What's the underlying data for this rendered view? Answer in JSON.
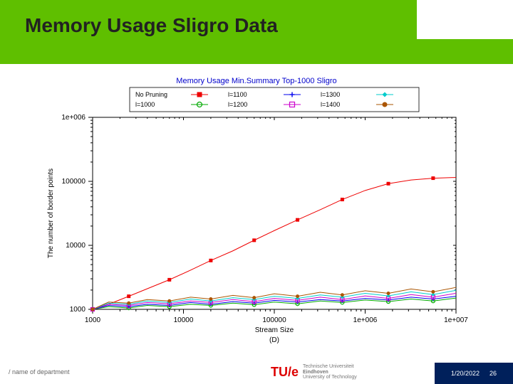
{
  "title": "Memory Usage Sligro Data",
  "footer": {
    "left": "/ name of department",
    "logo_main": "TU/e",
    "logo_sub1": "Technische Universiteit",
    "logo_sub2": "Eindhoven",
    "logo_sub3": "University of Technology",
    "date": "1/20/2022",
    "page": "26"
  },
  "chart": {
    "title": "Memory Usage Min.Summary Top-1000 Sligro",
    "title_color": "#0000cc",
    "title_fontsize": 11,
    "xlabel": "Stream Size",
    "ylabel": "The number of border points",
    "label_fontsize": 10,
    "axis_color": "#000000",
    "background": "#ffffff",
    "x_log": true,
    "y_log": true,
    "xlim": [
      1000,
      10000000
    ],
    "ylim": [
      1000,
      1000000
    ],
    "xticks": [
      1000,
      10000,
      100000,
      1000000,
      10000000
    ],
    "xticklabels": [
      "1000",
      "10000",
      "100000",
      "1e+006",
      "1e+007"
    ],
    "yticks": [
      1000,
      10000,
      100000,
      1000000
    ],
    "yticklabels": [
      "1000",
      "10000",
      "100000",
      "1e+006"
    ],
    "d_label": "(D)",
    "legend": {
      "items": [
        {
          "label": "No Pruning",
          "color": "#ee0000",
          "marker": "square-filled"
        },
        {
          "label": "l=1100",
          "color": "#0000ee",
          "marker": "cross"
        },
        {
          "label": "l=1300",
          "color": "#00cccc",
          "marker": "diamond-filled"
        },
        {
          "label": "l=1000",
          "color": "#00aa00",
          "marker": "circle-open"
        },
        {
          "label": "l=1200",
          "color": "#cc00cc",
          "marker": "square-open"
        },
        {
          "label": "l=1400",
          "color": "#aa5500",
          "marker": "circle-filled"
        }
      ]
    },
    "series": [
      {
        "name": "No Pruning",
        "color": "#ee0000",
        "marker": "square-filled",
        "x": [
          1000,
          1500,
          2500,
          4000,
          7000,
          12000,
          20000,
          35000,
          60000,
          100000,
          180000,
          320000,
          560000,
          1000000,
          1800000,
          3200000,
          5600000,
          10000000
        ],
        "y": [
          1000,
          1200,
          1600,
          2100,
          2900,
          4100,
          5800,
          8200,
          12000,
          17000,
          25000,
          36000,
          52000,
          72000,
          92000,
          105000,
          112000,
          115000
        ]
      },
      {
        "name": "l=1000",
        "color": "#00aa00",
        "marker": "circle-open",
        "x": [
          1000,
          1500,
          2500,
          4000,
          7000,
          12000,
          20000,
          35000,
          60000,
          100000,
          180000,
          320000,
          560000,
          1000000,
          1800000,
          3200000,
          5600000,
          10000000
        ],
        "y": [
          1000,
          1100,
          1050,
          1150,
          1100,
          1200,
          1150,
          1250,
          1180,
          1300,
          1220,
          1350,
          1280,
          1400,
          1320,
          1450,
          1350,
          1500
        ]
      },
      {
        "name": "l=1100",
        "color": "#0000ee",
        "marker": "cross",
        "x": [
          1000,
          1500,
          2500,
          4000,
          7000,
          12000,
          20000,
          35000,
          60000,
          100000,
          180000,
          320000,
          560000,
          1000000,
          1800000,
          3200000,
          5600000,
          10000000
        ],
        "y": [
          1000,
          1150,
          1100,
          1200,
          1150,
          1280,
          1200,
          1320,
          1250,
          1380,
          1300,
          1420,
          1350,
          1480,
          1400,
          1550,
          1450,
          1600
        ]
      },
      {
        "name": "l=1200",
        "color": "#cc00cc",
        "marker": "square-open",
        "x": [
          1000,
          1500,
          2500,
          4000,
          7000,
          12000,
          20000,
          35000,
          60000,
          100000,
          180000,
          320000,
          560000,
          1000000,
          1800000,
          3200000,
          5600000,
          10000000
        ],
        "y": [
          1000,
          1200,
          1150,
          1280,
          1220,
          1350,
          1280,
          1420,
          1320,
          1480,
          1380,
          1550,
          1420,
          1620,
          1480,
          1700,
          1550,
          1780
        ]
      },
      {
        "name": "l=1300",
        "color": "#00cccc",
        "marker": "diamond-filled",
        "x": [
          1000,
          1500,
          2500,
          4000,
          7000,
          12000,
          20000,
          35000,
          60000,
          100000,
          180000,
          320000,
          560000,
          1000000,
          1800000,
          3200000,
          5600000,
          10000000
        ],
        "y": [
          1000,
          1250,
          1200,
          1350,
          1280,
          1450,
          1350,
          1520,
          1420,
          1600,
          1480,
          1680,
          1550,
          1780,
          1620,
          1880,
          1700,
          1980
        ]
      },
      {
        "name": "l=1400",
        "color": "#aa5500",
        "marker": "circle-filled",
        "x": [
          1000,
          1500,
          2500,
          4000,
          7000,
          12000,
          20000,
          35000,
          60000,
          100000,
          180000,
          320000,
          560000,
          1000000,
          1800000,
          3200000,
          5600000,
          10000000
        ],
        "y": [
          1000,
          1300,
          1250,
          1420,
          1350,
          1550,
          1450,
          1650,
          1520,
          1750,
          1600,
          1850,
          1680,
          1950,
          1780,
          2080,
          1880,
          2200
        ]
      }
    ]
  }
}
